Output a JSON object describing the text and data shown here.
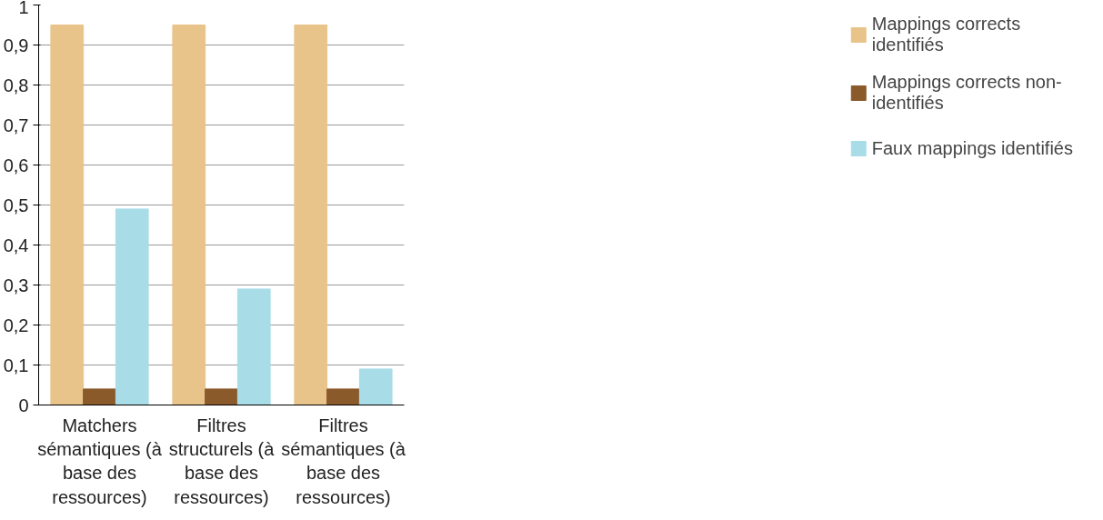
{
  "chart_data": {
    "type": "bar",
    "categories": [
      "Matchers sémantiques (à base des ressources)",
      "Filtres structurels (à base des ressources)",
      "Filtres sémantiques (à base des ressources)"
    ],
    "series": [
      {
        "name": "Mappings corrects identifiés",
        "color": "#e8c48a",
        "values": [
          0.95,
          0.95,
          0.95
        ]
      },
      {
        "name": "Mappings corrects non-identifiés",
        "color": "#8b5a2b",
        "values": [
          0.04,
          0.04,
          0.04
        ]
      },
      {
        "name": "Faux mappings identifiés",
        "color": "#a8dde8",
        "values": [
          0.49,
          0.29,
          0.09
        ]
      }
    ],
    "ylim": [
      0,
      1
    ],
    "yticks": [
      0,
      {
        "value": 0.1,
        "label": "0,1"
      },
      {
        "value": 0.2,
        "label": "0,2"
      },
      {
        "value": 0.3,
        "label": "0,3"
      },
      {
        "value": 0.4,
        "label": "0,4"
      },
      {
        "value": 0.5,
        "label": "0,5"
      },
      {
        "value": 0.6,
        "label": "0,6"
      },
      {
        "value": 0.7,
        "label": "0,7"
      },
      {
        "value": 0.8,
        "label": "0,8"
      },
      {
        "value": 0.9,
        "label": "0,9"
      },
      1
    ],
    "grid": "y",
    "legend": "right"
  }
}
